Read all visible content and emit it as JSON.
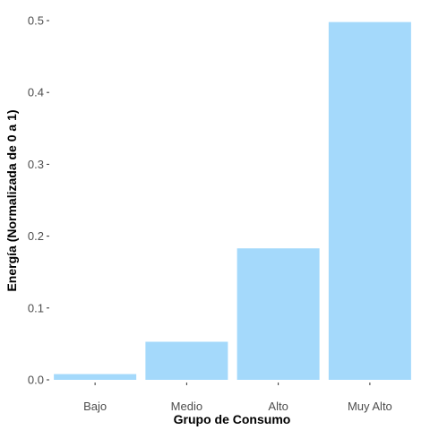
{
  "chart_data": {
    "type": "bar",
    "categories": [
      "Bajo",
      "Medio",
      "Alto",
      "Muy Alto"
    ],
    "values": [
      0.008,
      0.053,
      0.183,
      0.498
    ],
    "xlabel": "Grupo de Consumo",
    "ylabel": "Energía (Normalizada de 0 a 1)",
    "ylim": [
      0,
      0.52
    ],
    "yticks": [
      0.0,
      0.1,
      0.2,
      0.3,
      0.4,
      0.5
    ],
    "ytick_labels": [
      "0.0",
      "0.1",
      "0.2",
      "0.3",
      "0.4",
      "0.5"
    ],
    "bar_color": "#a4d9fb",
    "grid": false,
    "legend": "none"
  }
}
